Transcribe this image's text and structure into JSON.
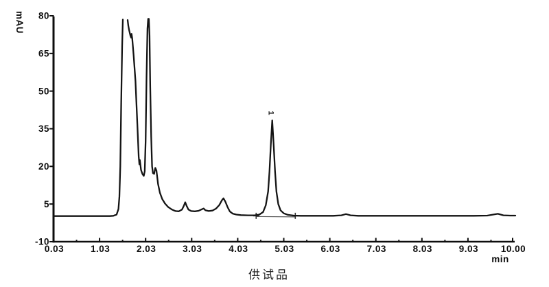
{
  "figure": {
    "background": "#ffffff",
    "caption": "供试品",
    "trace_color": "#141414",
    "axis_color": "#0d0d0d",
    "integration_color": "#555555"
  },
  "chart_data": {
    "type": "line",
    "title": "",
    "xlabel": "min",
    "ylabel": "mAU",
    "xlim": [
      0.03,
      10.0
    ],
    "ylim": [
      -10,
      80
    ],
    "grid": false,
    "legend_position": "none",
    "x_ticks": {
      "values": [
        0.03,
        1.03,
        2.03,
        3.03,
        4.03,
        5.03,
        6.03,
        7.03,
        8.03,
        9.03,
        10.0
      ],
      "labels": [
        "0.03",
        "1.03",
        "2.03",
        "3.03",
        "4.03",
        "5.03",
        "6.03",
        "7.03",
        "8.03",
        "9.03",
        "10.00"
      ],
      "minor_values": [
        0.53,
        1.53,
        2.53,
        3.53,
        4.53,
        5.53,
        6.53,
        7.53,
        8.53,
        9.53
      ]
    },
    "y_ticks": {
      "values": [
        80,
        65,
        50,
        35,
        20,
        5,
        -10
      ],
      "labels": [
        "80",
        "65",
        "50",
        "35",
        "20",
        "5",
        "-10"
      ]
    },
    "peaks": [
      {
        "label": "1",
        "retention_min": 4.78,
        "height_mAU": 38.3
      }
    ],
    "integration": {
      "marker_glyph": "+",
      "start_min": 4.43,
      "end_min": 5.28,
      "level_mAU": 0.3
    },
    "series": [
      {
        "name": "供试品 chromatogram",
        "clipped_above_mAU": 78.5,
        "segments": [
          [
            [
              0.03,
              0.2
            ],
            [
              0.4,
              0.2
            ],
            [
              0.8,
              0.2
            ],
            [
              1.1,
              0.2
            ],
            [
              1.25,
              0.2
            ],
            [
              1.33,
              0.3
            ],
            [
              1.4,
              0.8
            ],
            [
              1.44,
              3
            ],
            [
              1.46,
              8
            ],
            [
              1.48,
              20
            ],
            [
              1.5,
              45
            ],
            [
              1.52,
              68
            ],
            [
              1.535,
              78.5
            ]
          ],
          [
            [
              1.64,
              78.3
            ],
            [
              1.655,
              76
            ],
            [
              1.67,
              74.5
            ],
            [
              1.7,
              72
            ],
            [
              1.715,
              71.3
            ],
            [
              1.725,
              72.8
            ],
            [
              1.74,
              71
            ],
            [
              1.77,
              64
            ],
            [
              1.81,
              54
            ],
            [
              1.85,
              37
            ],
            [
              1.88,
              24
            ],
            [
              1.895,
              20.8
            ],
            [
              1.905,
              22.5
            ],
            [
              1.93,
              18.6
            ],
            [
              1.96,
              17
            ],
            [
              1.99,
              16.2
            ],
            [
              2.01,
              18
            ],
            [
              2.03,
              30
            ],
            [
              2.05,
              55
            ],
            [
              2.07,
              75
            ],
            [
              2.085,
              78.8
            ],
            [
              2.1,
              78.8
            ],
            [
              2.115,
              72
            ],
            [
              2.13,
              52
            ],
            [
              2.15,
              32
            ],
            [
              2.17,
              20
            ],
            [
              2.19,
              17.3
            ],
            [
              2.215,
              17.0
            ],
            [
              2.24,
              19.4
            ],
            [
              2.265,
              18.3
            ],
            [
              2.3,
              13
            ],
            [
              2.34,
              9.5
            ],
            [
              2.39,
              7
            ],
            [
              2.45,
              5.2
            ],
            [
              2.52,
              3.8
            ],
            [
              2.6,
              2.8
            ],
            [
              2.68,
              2.2
            ],
            [
              2.75,
              2.1
            ],
            [
              2.82,
              2.8
            ],
            [
              2.86,
              4.3
            ],
            [
              2.89,
              5.7
            ],
            [
              2.92,
              4.3
            ],
            [
              2.96,
              2.8
            ],
            [
              3.02,
              2.2
            ],
            [
              3.1,
              2.1
            ],
            [
              3.18,
              2.3
            ],
            [
              3.25,
              2.9
            ],
            [
              3.29,
              3.2
            ],
            [
              3.33,
              2.5
            ],
            [
              3.4,
              2.2
            ],
            [
              3.48,
              2.4
            ],
            [
              3.56,
              3.2
            ],
            [
              3.63,
              4.6
            ],
            [
              3.69,
              6.6
            ],
            [
              3.72,
              7.3
            ],
            [
              3.76,
              6.0
            ],
            [
              3.81,
              3.8
            ],
            [
              3.86,
              2.0
            ],
            [
              3.92,
              1.2
            ],
            [
              4.0,
              0.8
            ],
            [
              4.1,
              0.6
            ],
            [
              4.25,
              0.5
            ],
            [
              4.4,
              0.5
            ],
            [
              4.5,
              0.8
            ],
            [
              4.58,
              1.8
            ],
            [
              4.64,
              4.5
            ],
            [
              4.69,
              10
            ],
            [
              4.72,
              18
            ],
            [
              4.75,
              29
            ],
            [
              4.78,
              38.3
            ],
            [
              4.81,
              29
            ],
            [
              4.84,
              18
            ],
            [
              4.87,
              10
            ],
            [
              4.91,
              5
            ],
            [
              4.96,
              2.5
            ],
            [
              5.03,
              1.3
            ],
            [
              5.12,
              0.7
            ],
            [
              5.25,
              0.4
            ],
            [
              5.4,
              0.3
            ],
            [
              5.6,
              0.3
            ],
            [
              5.85,
              0.3
            ],
            [
              6.1,
              0.3
            ],
            [
              6.28,
              0.5
            ],
            [
              6.38,
              1.0
            ],
            [
              6.48,
              0.5
            ],
            [
              6.65,
              0.3
            ],
            [
              6.9,
              0.3
            ],
            [
              7.2,
              0.3
            ],
            [
              7.6,
              0.3
            ],
            [
              8.0,
              0.3
            ],
            [
              8.4,
              0.3
            ],
            [
              8.8,
              0.3
            ],
            [
              9.15,
              0.3
            ],
            [
              9.45,
              0.4
            ],
            [
              9.6,
              0.9
            ],
            [
              9.68,
              1.1
            ],
            [
              9.8,
              0.5
            ],
            [
              9.95,
              0.4
            ],
            [
              10.06,
              0.4
            ]
          ]
        ]
      }
    ]
  }
}
